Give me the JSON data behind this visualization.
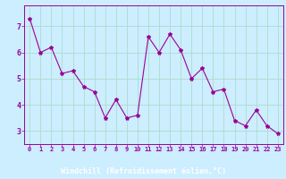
{
  "x": [
    0,
    1,
    2,
    3,
    4,
    5,
    6,
    7,
    8,
    9,
    10,
    11,
    12,
    13,
    14,
    15,
    16,
    17,
    18,
    19,
    20,
    21,
    22,
    23
  ],
  "y": [
    7.3,
    6.0,
    6.2,
    5.2,
    5.3,
    4.7,
    4.5,
    3.5,
    4.2,
    3.5,
    3.6,
    6.6,
    6.0,
    6.7,
    6.1,
    5.0,
    5.4,
    4.5,
    4.6,
    3.4,
    3.2,
    3.8,
    3.2,
    2.9
  ],
  "line_color": "#990099",
  "marker": "*",
  "marker_size": 3,
  "bg_color": "#cceeff",
  "grid_color": "#aaddcc",
  "xlabel": "Windchill (Refroidissement éolien,°C)",
  "xlabel_color": "#990099",
  "tick_color": "#990099",
  "xlabel_bg": "#9900aa",
  "ylim": [
    2.5,
    7.8
  ],
  "xlim": [
    -0.5,
    23.5
  ],
  "yticks": [
    3,
    4,
    5,
    6,
    7
  ],
  "xticks": [
    0,
    1,
    2,
    3,
    4,
    5,
    6,
    7,
    8,
    9,
    10,
    11,
    12,
    13,
    14,
    15,
    16,
    17,
    18,
    19,
    20,
    21,
    22,
    23
  ],
  "tick_fontsize": 5,
  "ytick_fontsize": 6,
  "xlabel_fontsize": 6
}
